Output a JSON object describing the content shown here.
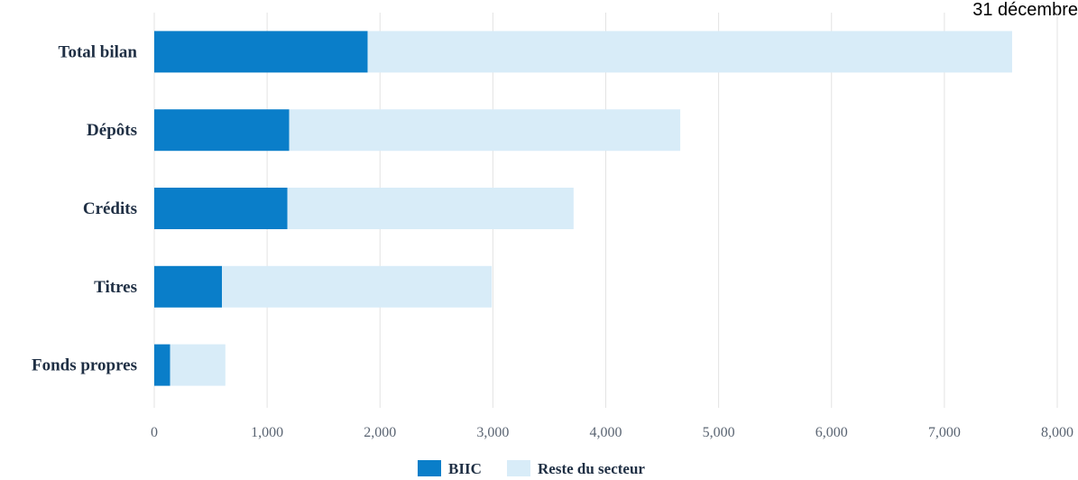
{
  "header": {
    "date_label": "31 décembre"
  },
  "colors": {
    "biic": "#0a7ec9",
    "reste": "#d8ecf8",
    "grid": "#e3e3e3",
    "category_text": "#1f2f44",
    "tick_text": "#5a6472"
  },
  "chart_data": {
    "type": "bar",
    "orientation": "horizontal",
    "stacked": true,
    "categories": [
      "Total bilan",
      "Dépôts",
      "Crédits",
      "Titres",
      "Fonds propres"
    ],
    "series": [
      {
        "name": "BIIC",
        "values": [
          1890,
          1195,
          1180,
          600,
          140
        ]
      },
      {
        "name": "Reste du secteur",
        "values": [
          5710,
          3465,
          2535,
          2390,
          490
        ]
      }
    ],
    "title": "",
    "xlabel": "",
    "ylabel": "",
    "xlim": [
      0,
      8000
    ],
    "xticks": [
      0,
      1000,
      2000,
      3000,
      4000,
      5000,
      6000,
      7000,
      8000
    ],
    "xtick_labels": [
      "0",
      "1,000",
      "2,000",
      "3,000",
      "4,000",
      "5,000",
      "6,000",
      "7,000",
      "8,000"
    ],
    "grid": true,
    "legend": "bottom-center"
  }
}
